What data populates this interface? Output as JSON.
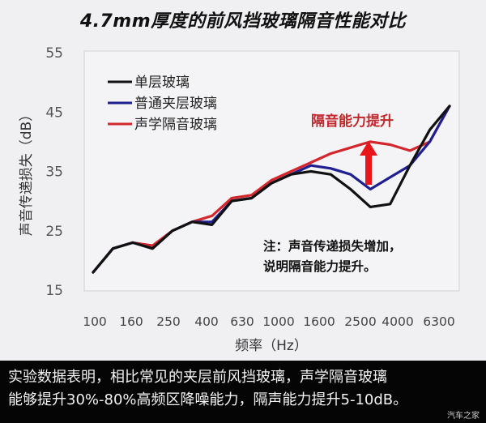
{
  "title": "4.7mm厚度的前风挡玻璃隔音性能对比",
  "chart_data": {
    "type": "line",
    "title": "4.7mm厚度的前风挡玻璃隔音性能对比",
    "xlabel": "频率（Hz）",
    "ylabel": "声音传递损失（dB）",
    "ylim": [
      15,
      55
    ],
    "yticks": [
      15,
      25,
      35,
      45,
      55
    ],
    "x_tick_labels": [
      "100",
      "160",
      "250",
      "400",
      "630",
      "1000",
      "1600",
      "2500",
      "4000",
      "6300"
    ],
    "x": [
      100,
      125,
      160,
      200,
      250,
      315,
      400,
      500,
      630,
      800,
      1000,
      1250,
      1600,
      2000,
      2500,
      3150,
      4000,
      5000,
      6300
    ],
    "series": [
      {
        "name": "单层玻璃",
        "color": "#111111",
        "values": [
          18,
          22,
          23,
          22,
          25,
          26.5,
          26,
          30,
          30.5,
          33,
          34.5,
          35,
          34.5,
          32,
          29,
          29.5,
          36,
          42,
          46
        ]
      },
      {
        "name": "普通夹层玻璃",
        "color": "#1f1f8f",
        "values": [
          18,
          22,
          23,
          22,
          25,
          26.5,
          26.5,
          30,
          30.5,
          33,
          34.5,
          36,
          35.5,
          34.5,
          32,
          34,
          36,
          40,
          46
        ]
      },
      {
        "name": "声学隔音玻璃",
        "color": "#d3272c",
        "values": [
          18,
          22,
          23,
          22.5,
          25,
          26.5,
          27.5,
          30.5,
          31,
          33.5,
          35,
          36.5,
          38,
          39,
          40,
          39.5,
          38.5,
          40,
          46
        ]
      }
    ],
    "legend_position": "upper left",
    "grid": false,
    "annotations": [
      {
        "text": "隔音能力提升",
        "color": "#c0282c",
        "arrow": "up",
        "x": 2500
      },
      {
        "text": "注：声音传递损失增加，\n说明隔音能力提升。"
      }
    ]
  },
  "labels": {
    "y_axis": "声音传递损失（dB）",
    "x_axis": "频率（Hz）",
    "annotation": "隔音能力提升",
    "note": "注：声音传递损失增加，\n说明隔音能力提升。"
  },
  "caption": {
    "line1": "实验数据表明，相比常见的夹层前风挡玻璃，声学隔音玻璃",
    "line2": "能够提升30%-80%高频区降噪能力，隔声能力提升5-10dB。",
    "watermark": "汽车之家"
  }
}
